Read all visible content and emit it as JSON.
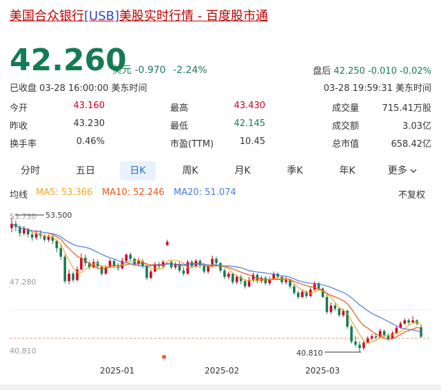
{
  "title": {
    "prefix": "美国合众银行",
    "ticker": "[USB]",
    "suffix": "美股实时行情 - 百度股市通"
  },
  "quote": {
    "price": "42.260",
    "unit": "美元",
    "change": "-0.970",
    "change_pct": "-2.24%",
    "after_hours_label": "盘后",
    "after_hours_price": "42.250",
    "after_hours_change": "-0.010",
    "after_hours_pct": "-0.02%",
    "status_left": "已收盘 03-28 16:00:00 美东时间",
    "status_right": "03-28 19:59:31 美东时间"
  },
  "stats": {
    "open_label": "今开",
    "open_value": "43.160",
    "high_label": "最高",
    "high_value": "43.430",
    "volume_label": "成交量",
    "volume_value": "715.41万股",
    "prev_label": "昨收",
    "prev_value": "43.230",
    "low_label": "最低",
    "low_value": "42.145",
    "turnover_label": "成交额",
    "turnover_value": "3.03亿",
    "rate_label": "换手率",
    "rate_value": "0.46%",
    "pe_label": "市盈(TTM)",
    "pe_value": "10.45",
    "mcap_label": "总市值",
    "mcap_value": "658.42亿"
  },
  "tabs": [
    "分时",
    "五日",
    "日K",
    "周K",
    "月K",
    "季K",
    "年K",
    "更多"
  ],
  "active_tab": "日K",
  "ma": {
    "label": "均线",
    "ma5": "MA5: 53.366",
    "ma10": "MA10: 52.246",
    "ma20": "MA20: 51.074",
    "adjust": "不复权"
  },
  "colors": {
    "up": "#d0021b",
    "down": "#157b54",
    "ma5": "#f5a623",
    "ma10": "#e8561c",
    "ma20": "#4a7bdc",
    "active_tab": "#2a6bd1"
  },
  "chart_data": {
    "type": "candlestick",
    "y_tick_labels": [
      "53.730",
      "47.280",
      "40.810"
    ],
    "y_ticks": [
      53.73,
      47.28,
      40.81
    ],
    "x_tick_labels": [
      "2025-01",
      "2025-02",
      "2025-03"
    ],
    "max_label": "53.500",
    "min_label": "40.810",
    "current_price": 42.26,
    "ylim": [
      40.81,
      53.73
    ],
    "candles": [
      [
        52.5,
        52.9,
        53.5,
        52.1
      ],
      [
        52.9,
        52.6,
        53.2,
        52.2
      ],
      [
        52.6,
        52.0,
        52.8,
        51.7
      ],
      [
        52.0,
        52.4,
        52.7,
        51.8
      ],
      [
        52.4,
        51.9,
        52.5,
        51.6
      ],
      [
        51.9,
        51.6,
        52.1,
        51.3
      ],
      [
        51.6,
        52.0,
        52.3,
        51.4
      ],
      [
        52.0,
        51.8,
        52.3,
        51.5
      ],
      [
        51.8,
        51.4,
        51.9,
        51.2
      ],
      [
        51.4,
        51.7,
        51.9,
        51.2
      ],
      [
        51.7,
        51.3,
        51.8,
        51.0
      ],
      [
        51.3,
        50.6,
        51.4,
        50.2
      ],
      [
        50.6,
        49.8,
        50.9,
        49.5
      ],
      [
        49.8,
        47.5,
        50.0,
        47.3
      ],
      [
        47.5,
        48.2,
        48.6,
        47.2
      ],
      [
        48.2,
        47.6,
        48.4,
        47.4
      ],
      [
        47.6,
        48.6,
        48.9,
        47.5
      ],
      [
        48.6,
        49.7,
        50.1,
        48.5
      ],
      [
        49.7,
        49.2,
        50.0,
        48.9
      ],
      [
        49.2,
        48.8,
        49.4,
        48.6
      ],
      [
        48.8,
        49.3,
        49.6,
        48.7
      ],
      [
        49.3,
        48.9,
        49.5,
        48.6
      ],
      [
        48.9,
        48.2,
        49.0,
        48.0
      ],
      [
        48.2,
        48.8,
        49.0,
        48.1
      ],
      [
        48.8,
        49.4,
        49.6,
        48.7
      ],
      [
        49.4,
        48.9,
        49.6,
        48.7
      ],
      [
        48.9,
        48.7,
        49.2,
        48.5
      ],
      [
        48.7,
        49.4,
        49.7,
        48.6
      ],
      [
        49.4,
        50.0,
        50.1,
        49.2
      ],
      [
        50.0,
        49.6,
        50.2,
        49.4
      ],
      [
        49.6,
        49.1,
        49.7,
        48.9
      ],
      [
        49.1,
        49.4,
        49.7,
        48.9
      ],
      [
        49.4,
        48.9,
        49.6,
        48.7
      ],
      [
        48.9,
        47.8,
        49.0,
        47.6
      ],
      [
        47.8,
        48.4,
        48.6,
        47.7
      ],
      [
        48.4,
        49.1,
        49.3,
        48.3
      ],
      [
        49.1,
        48.9,
        49.3,
        48.6
      ],
      [
        48.9,
        49.3,
        49.5,
        48.7
      ],
      [
        50.9,
        51.2,
        51.4,
        50.8
      ],
      [
        49.3,
        48.8,
        49.5,
        48.6
      ],
      [
        48.8,
        49.1,
        49.3,
        48.6
      ],
      [
        49.1,
        48.5,
        49.3,
        48.3
      ],
      [
        48.5,
        48.2,
        48.8,
        48.0
      ],
      [
        48.2,
        49.3,
        49.5,
        48.1
      ],
      [
        49.3,
        48.9,
        49.5,
        48.7
      ],
      [
        48.9,
        49.4,
        49.6,
        48.8
      ],
      [
        49.4,
        49.0,
        49.6,
        48.7
      ],
      [
        49.0,
        48.4,
        49.2,
        48.2
      ],
      [
        48.4,
        48.9,
        49.1,
        48.2
      ],
      [
        48.9,
        49.6,
        49.9,
        48.8
      ],
      [
        49.6,
        49.2,
        49.8,
        48.9
      ],
      [
        49.2,
        48.5,
        49.3,
        48.3
      ],
      [
        48.5,
        47.9,
        48.7,
        47.7
      ],
      [
        47.9,
        48.2,
        48.4,
        47.7
      ],
      [
        48.2,
        47.4,
        48.3,
        47.2
      ],
      [
        47.4,
        47.9,
        48.1,
        47.2
      ],
      [
        47.9,
        47.5,
        48.1,
        47.2
      ],
      [
        47.5,
        47.0,
        47.7,
        46.8
      ],
      [
        47.0,
        47.6,
        47.9,
        46.9
      ],
      [
        47.6,
        48.1,
        48.3,
        47.4
      ],
      [
        48.1,
        47.5,
        48.2,
        47.3
      ],
      [
        47.5,
        47.8,
        48.0,
        47.3
      ],
      [
        47.8,
        47.3,
        48.0,
        47.1
      ],
      [
        47.3,
        47.7,
        47.9,
        47.1
      ],
      [
        47.7,
        48.2,
        48.4,
        47.6
      ],
      [
        48.2,
        47.9,
        48.3,
        47.6
      ],
      [
        47.9,
        47.4,
        48.0,
        47.2
      ],
      [
        47.4,
        47.6,
        47.9,
        47.2
      ],
      [
        47.6,
        47.0,
        47.7,
        46.8
      ],
      [
        47.0,
        46.4,
        47.2,
        46.2
      ],
      [
        46.4,
        46.0,
        46.6,
        45.8
      ],
      [
        46.0,
        46.5,
        46.7,
        45.9
      ],
      [
        46.5,
        46.1,
        46.6,
        45.9
      ],
      [
        46.1,
        46.7,
        46.9,
        46.0
      ],
      [
        46.7,
        47.3,
        47.5,
        46.6
      ],
      [
        47.3,
        46.8,
        47.4,
        46.6
      ],
      [
        46.8,
        46.0,
        46.9,
        45.9
      ],
      [
        46.0,
        44.6,
        46.2,
        44.4
      ],
      [
        44.6,
        45.2,
        45.5,
        44.4
      ],
      [
        45.2,
        44.9,
        45.4,
        44.7
      ],
      [
        44.9,
        44.3,
        45.0,
        44.1
      ],
      [
        44.3,
        44.7,
        44.9,
        44.1
      ],
      [
        44.7,
        43.2,
        44.8,
        43.0
      ],
      [
        43.2,
        41.8,
        43.4,
        41.6
      ],
      [
        41.8,
        41.5,
        42.3,
        41.3
      ],
      [
        41.5,
        41.2,
        41.8,
        40.81
      ],
      [
        41.2,
        41.7,
        41.9,
        41.0
      ],
      [
        41.7,
        42.1,
        42.3,
        41.6
      ],
      [
        42.1,
        42.3,
        42.5,
        41.9
      ],
      [
        42.3,
        42.2,
        42.6,
        42.0
      ],
      [
        42.2,
        42.8,
        43.0,
        42.1
      ],
      [
        42.8,
        42.4,
        42.9,
        42.2
      ],
      [
        42.4,
        42.1,
        42.6,
        41.9
      ],
      [
        42.1,
        42.6,
        42.8,
        42.0
      ],
      [
        42.6,
        43.1,
        43.3,
        42.5
      ],
      [
        43.1,
        43.5,
        43.7,
        43.0
      ],
      [
        43.5,
        43.8,
        44.0,
        43.4
      ],
      [
        43.8,
        43.6,
        44.0,
        43.4
      ],
      [
        43.6,
        43.8,
        44.2,
        43.5
      ],
      [
        43.8,
        43.5,
        43.9,
        43.3
      ],
      [
        43.16,
        42.26,
        43.43,
        42.145
      ]
    ]
  }
}
